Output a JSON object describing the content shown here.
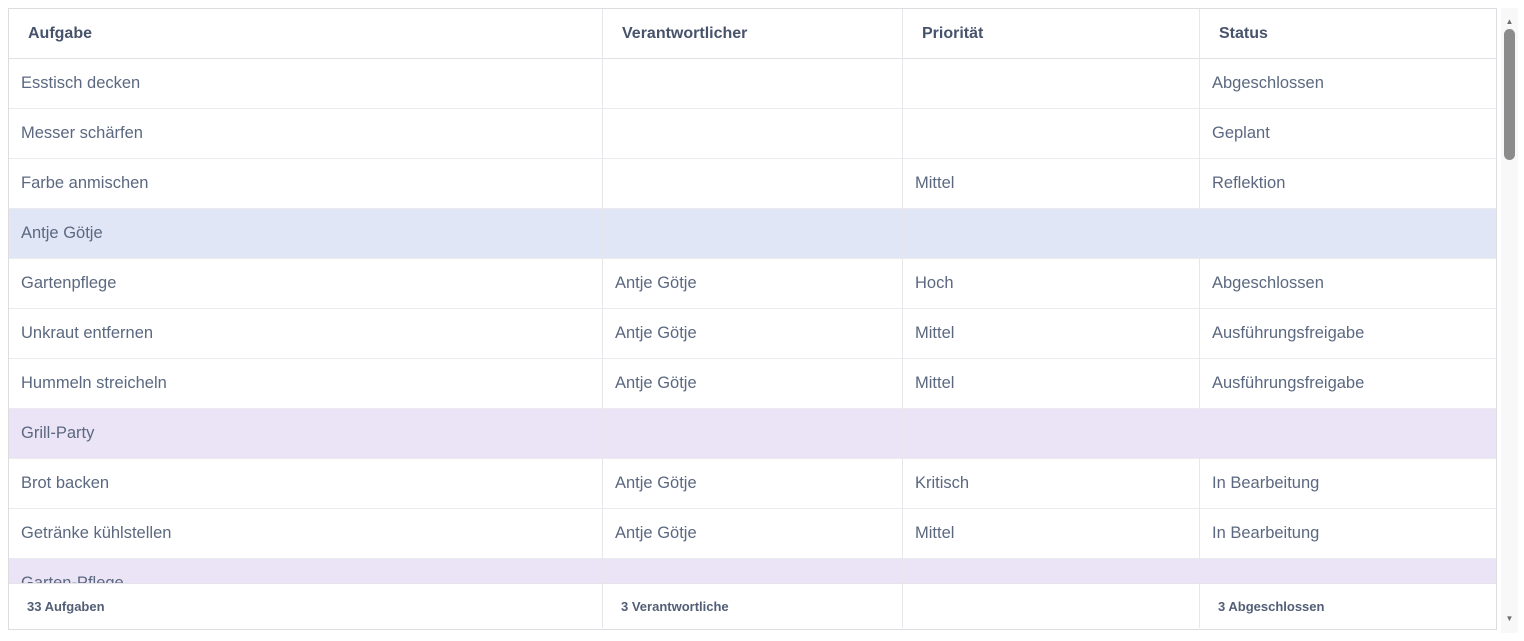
{
  "table": {
    "columns": [
      "Aufgabe",
      "Verantwortlicher",
      "Priorität",
      "Status"
    ],
    "rows": [
      {
        "type": "task",
        "task": "Esstisch decken",
        "responsible": "",
        "priority": "",
        "status": "Abgeschlossen"
      },
      {
        "type": "task",
        "task": "Messer schärfen",
        "responsible": "",
        "priority": "",
        "status": "Geplant"
      },
      {
        "type": "task",
        "task": "Farbe anmischen",
        "responsible": "",
        "priority": "Mittel",
        "status": "Reflektion"
      },
      {
        "type": "group",
        "group_color": "blue",
        "task": "Antje Götje",
        "responsible": "",
        "priority": "",
        "status": ""
      },
      {
        "type": "task",
        "task": "Gartenpflege",
        "responsible": "Antje Götje",
        "priority": "Hoch",
        "status": "Abgeschlossen"
      },
      {
        "type": "task",
        "task": "Unkraut entfernen",
        "responsible": "Antje Götje",
        "priority": "Mittel",
        "status": "Ausführungsfreigabe"
      },
      {
        "type": "task",
        "task": "Hummeln streicheln",
        "responsible": "Antje Götje",
        "priority": "Mittel",
        "status": "Ausführungsfreigabe"
      },
      {
        "type": "group",
        "group_color": "purple",
        "task": "Grill-Party",
        "responsible": "",
        "priority": "",
        "status": ""
      },
      {
        "type": "task",
        "task": "Brot backen",
        "responsible": "Antje Götje",
        "priority": "Kritisch",
        "status": "In Bearbeitung"
      },
      {
        "type": "task",
        "task": "Getränke kühlstellen",
        "responsible": "Antje Götje",
        "priority": "Mittel",
        "status": "In Bearbeitung"
      },
      {
        "type": "group",
        "group_color": "purple",
        "task": "Garten-Pflege",
        "responsible": "",
        "priority": "",
        "status": ""
      }
    ]
  },
  "footer": {
    "cells": [
      "33 Aufgaben",
      "3 Verantwortliche",
      "",
      "3 Abgeschlossen"
    ]
  },
  "scrollbar": {
    "up_icon": "▲",
    "down_icon": "▼"
  },
  "colors": {
    "group_blue": "#e0e6f6",
    "group_purple": "#ebe4f7",
    "header_text": "#47526b",
    "body_text": "#5b6880",
    "border": "#e7e7eb"
  }
}
